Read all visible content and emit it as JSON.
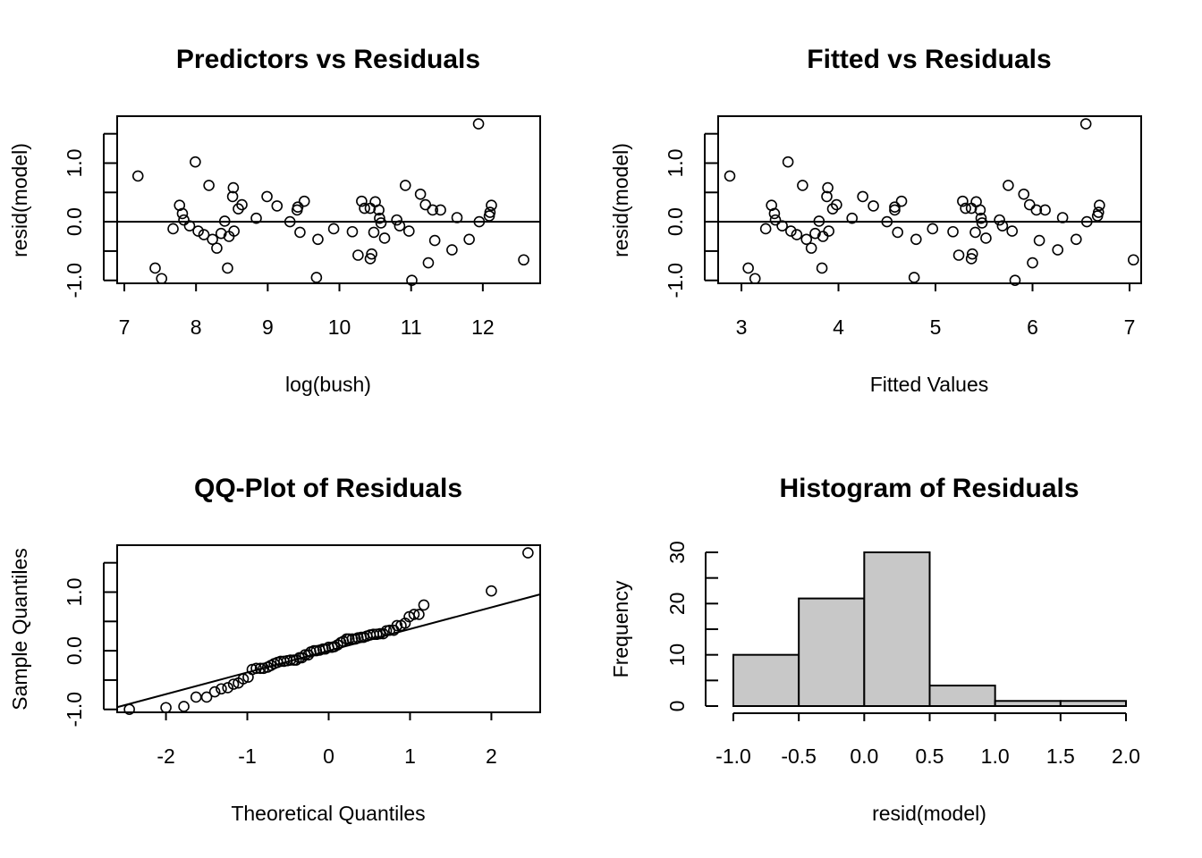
{
  "chart_data": [
    {
      "type": "scatter",
      "title": "Predictors vs Residuals",
      "xlabel": "log(bush)",
      "ylabel": "resid(model)",
      "xlim": [
        6.9,
        12.8
      ],
      "ylim": [
        -1.05,
        1.8
      ],
      "xticks": [
        7,
        8,
        9,
        10,
        11,
        12
      ],
      "xtick_labels": [
        "7",
        "8",
        "9",
        "10",
        "11",
        "12"
      ],
      "yticks": [
        -1,
        -0.5,
        0,
        0.5,
        1,
        1.5
      ],
      "ytick_labels": [
        "-1.0",
        "",
        "0.0",
        "",
        "1.0",
        ""
      ],
      "hline": 0,
      "points": [
        [
          7.19,
          0.78
        ],
        [
          7.43,
          -0.79
        ],
        [
          7.52,
          -0.97
        ],
        [
          7.68,
          -0.12
        ],
        [
          7.77,
          0.28
        ],
        [
          7.81,
          0.14
        ],
        [
          7.83,
          0.03
        ],
        [
          7.91,
          -0.07
        ],
        [
          7.99,
          1.02
        ],
        [
          8.03,
          -0.16
        ],
        [
          8.11,
          -0.22
        ],
        [
          8.18,
          0.62
        ],
        [
          8.23,
          -0.3
        ],
        [
          8.29,
          -0.45
        ],
        [
          8.35,
          -0.2
        ],
        [
          8.4,
          0.01
        ],
        [
          8.44,
          -0.79
        ],
        [
          8.46,
          -0.25
        ],
        [
          8.51,
          0.43
        ],
        [
          8.52,
          0.58
        ],
        [
          8.53,
          -0.16
        ],
        [
          8.59,
          0.22
        ],
        [
          8.64,
          0.29
        ],
        [
          8.84,
          0.06
        ],
        [
          8.99,
          0.43
        ],
        [
          9.13,
          0.27
        ],
        [
          9.31,
          0.0
        ],
        [
          9.41,
          0.2
        ],
        [
          9.42,
          0.25
        ],
        [
          9.45,
          -0.18
        ],
        [
          9.51,
          0.35
        ],
        [
          9.68,
          -0.95
        ],
        [
          9.7,
          -0.3
        ],
        [
          9.92,
          -0.12
        ],
        [
          10.18,
          -0.17
        ],
        [
          10.26,
          -0.57
        ],
        [
          10.31,
          0.35
        ],
        [
          10.35,
          0.23
        ],
        [
          10.43,
          0.23
        ],
        [
          10.43,
          -0.63
        ],
        [
          10.45,
          -0.55
        ],
        [
          10.48,
          -0.18
        ],
        [
          10.5,
          0.34
        ],
        [
          10.55,
          0.2
        ],
        [
          10.56,
          0.06
        ],
        [
          10.58,
          -0.02
        ],
        [
          10.63,
          -0.28
        ],
        [
          10.8,
          0.03
        ],
        [
          10.84,
          -0.07
        ],
        [
          10.92,
          0.62
        ],
        [
          10.97,
          -0.16
        ],
        [
          11.01,
          -1.0
        ],
        [
          11.13,
          0.47
        ],
        [
          11.2,
          0.29
        ],
        [
          11.24,
          -0.7
        ],
        [
          11.3,
          0.2
        ],
        [
          11.33,
          -0.32
        ],
        [
          11.41,
          0.2
        ],
        [
          11.57,
          -0.48
        ],
        [
          11.64,
          0.07
        ],
        [
          11.81,
          -0.3
        ],
        [
          11.94,
          1.67
        ],
        [
          11.95,
          0.0
        ],
        [
          12.09,
          0.1
        ],
        [
          12.1,
          0.16
        ],
        [
          12.12,
          0.28
        ],
        [
          12.57,
          -0.65
        ]
      ]
    },
    {
      "type": "scatter",
      "title": "Fitted vs Residuals",
      "xlabel": "Fitted Values",
      "ylabel": "resid(model)",
      "xlim": [
        2.76,
        7.12
      ],
      "ylim": [
        -1.05,
        1.8
      ],
      "xticks": [
        3,
        4,
        5,
        6,
        7
      ],
      "xtick_labels": [
        "3",
        "4",
        "5",
        "6",
        "7"
      ],
      "yticks": [
        -1,
        -0.5,
        0,
        0.5,
        1,
        1.5
      ],
      "ytick_labels": [
        "-1.0",
        "",
        "0.0",
        "",
        "1.0",
        ""
      ],
      "hline": 0,
      "points": [
        [
          2.88,
          0.78
        ],
        [
          3.07,
          -0.79
        ],
        [
          3.14,
          -0.97
        ],
        [
          3.25,
          -0.12
        ],
        [
          3.31,
          0.28
        ],
        [
          3.34,
          0.14
        ],
        [
          3.35,
          0.03
        ],
        [
          3.42,
          -0.07
        ],
        [
          3.48,
          1.02
        ],
        [
          3.51,
          -0.16
        ],
        [
          3.57,
          -0.22
        ],
        [
          3.63,
          0.62
        ],
        [
          3.67,
          -0.3
        ],
        [
          3.72,
          -0.45
        ],
        [
          3.76,
          -0.2
        ],
        [
          3.8,
          0.01
        ],
        [
          3.83,
          -0.79
        ],
        [
          3.84,
          -0.25
        ],
        [
          3.88,
          0.43
        ],
        [
          3.89,
          0.58
        ],
        [
          3.9,
          -0.16
        ],
        [
          3.94,
          0.22
        ],
        [
          3.98,
          0.29
        ],
        [
          4.14,
          0.06
        ],
        [
          4.25,
          0.43
        ],
        [
          4.36,
          0.27
        ],
        [
          4.5,
          0.0
        ],
        [
          4.58,
          0.2
        ],
        [
          4.58,
          0.25
        ],
        [
          4.61,
          -0.18
        ],
        [
          4.65,
          0.35
        ],
        [
          4.78,
          -0.95
        ],
        [
          4.8,
          -0.3
        ],
        [
          4.97,
          -0.12
        ],
        [
          5.18,
          -0.17
        ],
        [
          5.24,
          -0.57
        ],
        [
          5.28,
          0.35
        ],
        [
          5.31,
          0.23
        ],
        [
          5.37,
          0.23
        ],
        [
          5.37,
          -0.63
        ],
        [
          5.38,
          -0.55
        ],
        [
          5.41,
          -0.18
        ],
        [
          5.42,
          0.34
        ],
        [
          5.46,
          0.2
        ],
        [
          5.47,
          0.06
        ],
        [
          5.48,
          -0.02
        ],
        [
          5.52,
          -0.28
        ],
        [
          5.66,
          0.03
        ],
        [
          5.69,
          -0.07
        ],
        [
          5.75,
          0.62
        ],
        [
          5.79,
          -0.16
        ],
        [
          5.82,
          -1.0
        ],
        [
          5.91,
          0.47
        ],
        [
          5.97,
          0.29
        ],
        [
          6.0,
          -0.7
        ],
        [
          6.04,
          0.2
        ],
        [
          6.07,
          -0.32
        ],
        [
          6.13,
          0.2
        ],
        [
          6.26,
          -0.48
        ],
        [
          6.31,
          0.07
        ],
        [
          6.45,
          -0.3
        ],
        [
          6.55,
          1.67
        ],
        [
          6.56,
          0.0
        ],
        [
          6.67,
          0.1
        ],
        [
          6.68,
          0.16
        ],
        [
          6.69,
          0.28
        ],
        [
          7.04,
          -0.65
        ]
      ]
    },
    {
      "type": "scatter",
      "title": "QQ-Plot of Residuals",
      "xlabel": "Theoretical Quantiles",
      "ylabel": "Sample Quantiles",
      "xlim": [
        -2.6,
        2.6
      ],
      "ylim": [
        -1.05,
        1.8
      ],
      "xticks": [
        -2,
        -1,
        0,
        1,
        2
      ],
      "xtick_labels": [
        "-2",
        "-1",
        "0",
        "1",
        "2"
      ],
      "yticks": [
        -1,
        -0.5,
        0,
        0.5,
        1,
        1.5
      ],
      "ytick_labels": [
        "-1.0",
        "",
        "0.0",
        "",
        "1.0",
        ""
      ],
      "qq_line": {
        "intercept": 0.0,
        "slope": 0.37
      },
      "points": [
        [
          -2.45,
          -1.0
        ],
        [
          -2.0,
          -0.97
        ],
        [
          -1.78,
          -0.95
        ],
        [
          -1.63,
          -0.79
        ],
        [
          -1.5,
          -0.79
        ],
        [
          -1.4,
          -0.7
        ],
        [
          -1.32,
          -0.65
        ],
        [
          -1.24,
          -0.63
        ],
        [
          -1.17,
          -0.57
        ],
        [
          -1.11,
          -0.55
        ],
        [
          -1.05,
          -0.48
        ],
        [
          -0.99,
          -0.45
        ],
        [
          -0.94,
          -0.32
        ],
        [
          -0.89,
          -0.3
        ],
        [
          -0.84,
          -0.3
        ],
        [
          -0.8,
          -0.3
        ],
        [
          -0.75,
          -0.28
        ],
        [
          -0.71,
          -0.25
        ],
        [
          -0.67,
          -0.22
        ],
        [
          -0.63,
          -0.2
        ],
        [
          -0.59,
          -0.18
        ],
        [
          -0.55,
          -0.18
        ],
        [
          -0.51,
          -0.17
        ],
        [
          -0.47,
          -0.16
        ],
        [
          -0.43,
          -0.16
        ],
        [
          -0.4,
          -0.16
        ],
        [
          -0.36,
          -0.12
        ],
        [
          -0.33,
          -0.12
        ],
        [
          -0.29,
          -0.07
        ],
        [
          -0.25,
          -0.07
        ],
        [
          -0.22,
          -0.02
        ],
        [
          -0.18,
          0.0
        ],
        [
          -0.15,
          0.0
        ],
        [
          -0.11,
          0.01
        ],
        [
          -0.07,
          0.03
        ],
        [
          -0.04,
          0.03
        ],
        [
          0.0,
          0.06
        ],
        [
          0.04,
          0.06
        ],
        [
          0.07,
          0.07
        ],
        [
          0.11,
          0.1
        ],
        [
          0.15,
          0.14
        ],
        [
          0.18,
          0.16
        ],
        [
          0.22,
          0.2
        ],
        [
          0.25,
          0.2
        ],
        [
          0.29,
          0.2
        ],
        [
          0.33,
          0.2
        ],
        [
          0.36,
          0.22
        ],
        [
          0.4,
          0.23
        ],
        [
          0.43,
          0.23
        ],
        [
          0.47,
          0.25
        ],
        [
          0.51,
          0.27
        ],
        [
          0.55,
          0.28
        ],
        [
          0.59,
          0.28
        ],
        [
          0.63,
          0.29
        ],
        [
          0.67,
          0.29
        ],
        [
          0.71,
          0.34
        ],
        [
          0.75,
          0.35
        ],
        [
          0.8,
          0.35
        ],
        [
          0.84,
          0.43
        ],
        [
          0.89,
          0.43
        ],
        [
          0.94,
          0.47
        ],
        [
          0.99,
          0.58
        ],
        [
          1.05,
          0.62
        ],
        [
          1.11,
          0.62
        ],
        [
          1.17,
          0.78
        ],
        [
          2.0,
          1.02
        ],
        [
          2.45,
          1.67
        ]
      ]
    },
    {
      "type": "bar",
      "title": "Histogram of Residuals",
      "xlabel": "resid(model)",
      "ylabel": "Frequency",
      "bins": [
        [
          -1.0,
          -0.5
        ],
        [
          -0.5,
          0.0
        ],
        [
          0.0,
          0.5
        ],
        [
          0.5,
          1.0
        ],
        [
          1.0,
          1.5
        ],
        [
          1.5,
          2.0
        ]
      ],
      "values": [
        10,
        21,
        30,
        4,
        1,
        1
      ],
      "xlim": [
        -1.0,
        2.0
      ],
      "ylim": [
        0,
        30
      ],
      "xticks": [
        -1.0,
        -0.5,
        0.0,
        0.5,
        1.0,
        1.5,
        2.0
      ],
      "xtick_labels": [
        "-1.0",
        "-0.5",
        "0.0",
        "0.5",
        "1.0",
        "1.5",
        "2.0"
      ],
      "yticks": [
        0,
        5,
        10,
        15,
        20,
        25,
        30
      ],
      "ytick_labels": [
        "0",
        "",
        "10",
        "",
        "20",
        "",
        "30"
      ],
      "bar_color": "#c8c8c8"
    }
  ]
}
